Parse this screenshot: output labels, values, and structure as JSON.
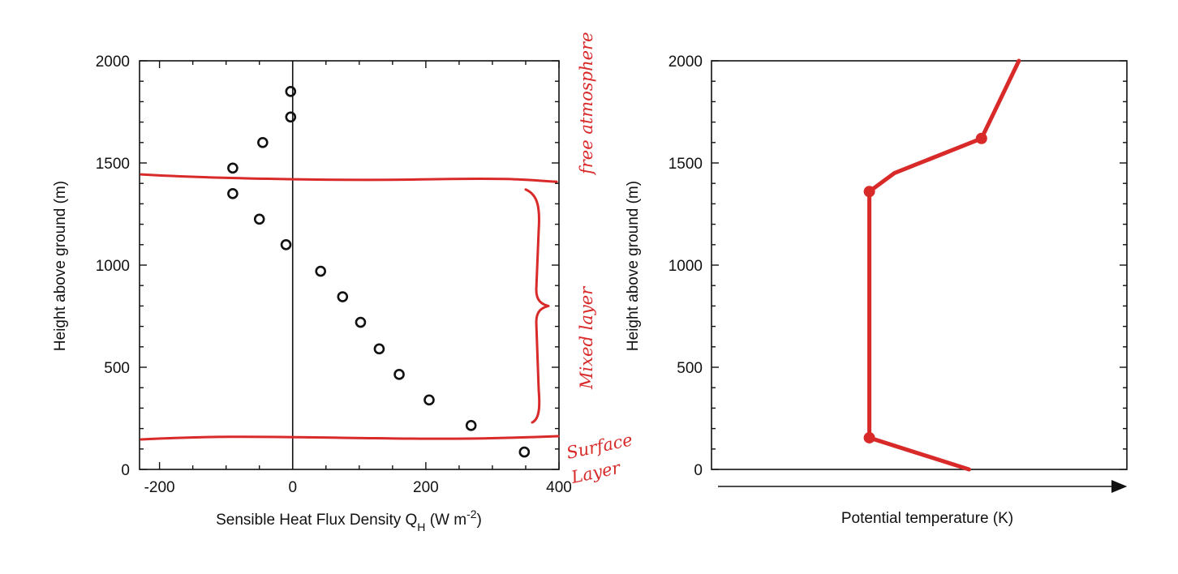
{
  "chart_data": [
    {
      "type": "scatter",
      "xlabel": "Sensible Heat Flux Density Q",
      "xlabel_sub": "H",
      "xlabel_units": " (W m",
      "xlabel_units_sup": "-2",
      "xlabel_units_end": ")",
      "ylabel": "Height above ground (m)",
      "xlim": [
        -230,
        400
      ],
      "ylim": [
        0,
        2000
      ],
      "xticks": [
        -200,
        0,
        200,
        400
      ],
      "yticks": [
        0,
        500,
        1000,
        1500,
        2000
      ],
      "grid": false,
      "points": [
        {
          "x": -3,
          "y": 1850
        },
        {
          "x": -3,
          "y": 1725
        },
        {
          "x": -45,
          "y": 1600
        },
        {
          "x": -90,
          "y": 1475
        },
        {
          "x": -90,
          "y": 1350
        },
        {
          "x": -50,
          "y": 1225
        },
        {
          "x": -10,
          "y": 1100
        },
        {
          "x": 42,
          "y": 970
        },
        {
          "x": 75,
          "y": 845
        },
        {
          "x": 102,
          "y": 720
        },
        {
          "x": 130,
          "y": 590
        },
        {
          "x": 160,
          "y": 465
        },
        {
          "x": 205,
          "y": 340
        },
        {
          "x": 268,
          "y": 215
        },
        {
          "x": 348,
          "y": 85
        }
      ],
      "reference_line_x": 0,
      "annotations": {
        "upper_boundary_height": 1420,
        "lower_boundary_height": 155,
        "free_atmosphere": "free atmosphere",
        "mixed_layer": "Mixed layer",
        "surface_line1": "Surface",
        "surface_line2": "Layer",
        "brace_range": [
          230,
          1370
        ]
      }
    },
    {
      "type": "line",
      "xlabel": "Potential temperature (K)",
      "ylabel": "Height above ground (m)",
      "ylim": [
        0,
        2000
      ],
      "yticks": [
        0,
        500,
        1000,
        1500,
        2000
      ],
      "xticks_labeled": false,
      "grid": false,
      "series": [
        {
          "points": [
            {
              "x": 0.62,
              "y": 0
            },
            {
              "x": 0.38,
              "y": 155
            },
            {
              "x": 0.38,
              "y": 1360
            },
            {
              "x": 0.44,
              "y": 1450
            },
            {
              "x": 0.65,
              "y": 1620
            },
            {
              "x": 0.74,
              "y": 2000
            }
          ]
        }
      ],
      "markers": [
        {
          "x": 0.38,
          "y": 155
        },
        {
          "x": 0.38,
          "y": 1360
        },
        {
          "x": 0.65,
          "y": 1620
        }
      ]
    }
  ],
  "colors": {
    "annotation": "#d92a2a",
    "ink": "#111111"
  }
}
